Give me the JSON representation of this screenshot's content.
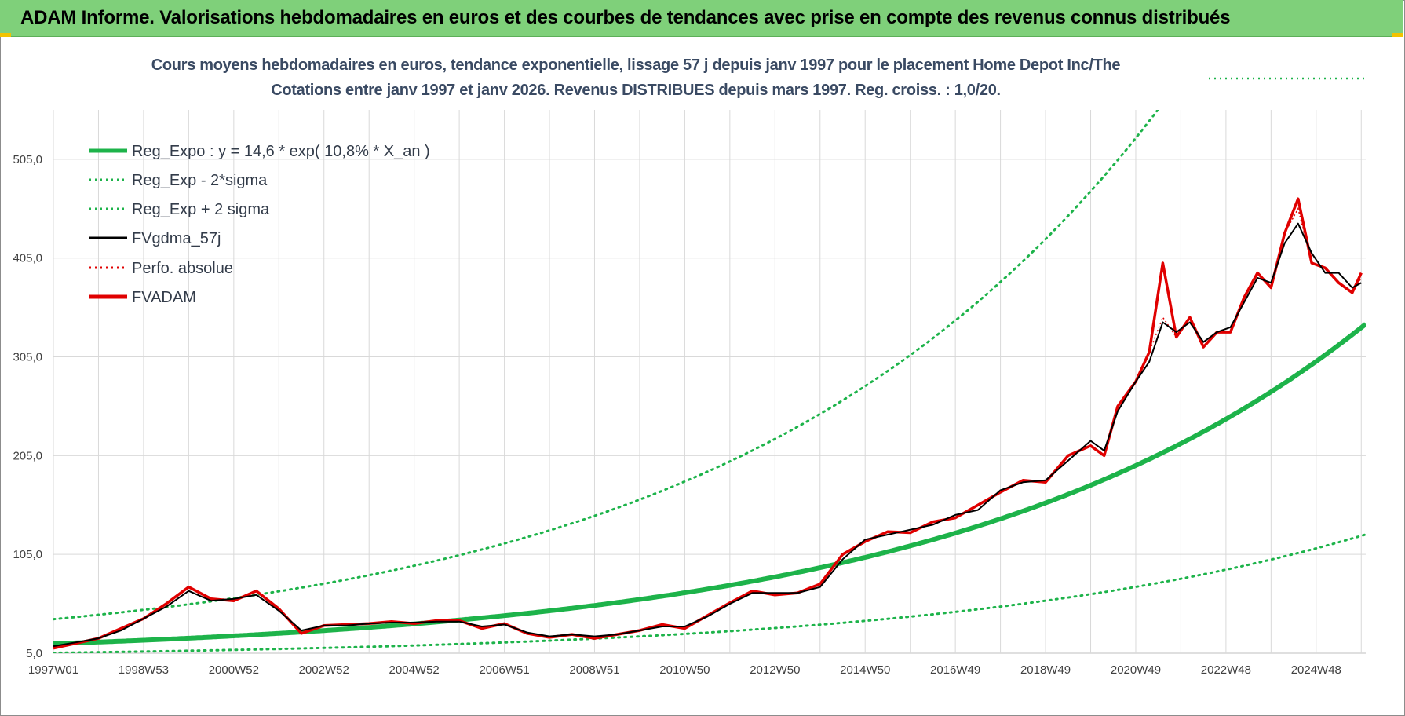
{
  "header": {
    "title": "ADAM Informe. Valorisations hebdomadaires en euros et des courbes de tendances avec prise en compte des revenus connus distribués"
  },
  "chart_data": {
    "type": "line",
    "title": "Cours moyens hebdomadaires en euros, tendance exponentielle, lissage 57 j depuis janv 1997 pour le placement Home Depot Inc/The",
    "subtitle": "Cotations entre janv 1997 et janv 2026. Revenus DISTRIBUES depuis mars 1997.  Reg. croiss. : 1,0/20.",
    "xlabel": "",
    "ylabel": "",
    "ylim": [
      5,
      555
    ],
    "xlim": [
      1997.0,
      2026.1
    ],
    "y_ticks": [
      "505,0",
      "405,0",
      "305,0",
      "205,0",
      "105,0",
      "5,0"
    ],
    "y_tick_values": [
      505,
      405,
      305,
      205,
      105,
      5
    ],
    "x_ticks": [
      "1997W01",
      "1998W53",
      "2000W52",
      "2002W52",
      "2004W52",
      "2006W51",
      "2008W51",
      "2010W50",
      "2012W50",
      "2014W50",
      "2016W49",
      "2018W49",
      "2020W49",
      "2022W48",
      "2024W48"
    ],
    "x_tick_values": [
      1997.0,
      1999.0,
      2001.0,
      2003.0,
      2005.0,
      2007.0,
      2009.0,
      2011.0,
      2013.0,
      2015.0,
      2017.0,
      2019.0,
      2021.0,
      2023.0,
      2025.0
    ],
    "grid": true,
    "legend_position": "top-left",
    "regression": {
      "a": 14.6,
      "rate": 0.108,
      "start_year": 1997.0,
      "sigma_low_factor": 0.37,
      "sigma_high_factor": 2.7
    },
    "series": [
      {
        "name": "Reg_Expo : y = 14,6 * exp( 10,8% *  X_an )",
        "color": "#1db34a",
        "style": "solid-thick"
      },
      {
        "name": "Reg_Exp - 2*sigma",
        "color": "#1db34a",
        "style": "dotted"
      },
      {
        "name": "Reg_Exp + 2 sigma",
        "color": "#1db34a",
        "style": "dotted"
      },
      {
        "name": "FVgdma_57j",
        "color": "#000000",
        "style": "solid",
        "x": [
          1997.0,
          1997.5,
          1998.0,
          1998.5,
          1999.0,
          1999.5,
          2000.0,
          2000.5,
          2001.0,
          2001.5,
          2002.0,
          2002.5,
          2003.0,
          2003.5,
          2004.0,
          2004.5,
          2005.0,
          2005.5,
          2006.0,
          2006.5,
          2007.0,
          2007.5,
          2008.0,
          2008.5,
          2009.0,
          2009.5,
          2010.0,
          2010.5,
          2011.0,
          2011.5,
          2012.0,
          2012.5,
          2013.0,
          2013.5,
          2014.0,
          2014.5,
          2015.0,
          2015.5,
          2016.0,
          2016.5,
          2017.0,
          2017.5,
          2018.0,
          2018.5,
          2019.0,
          2019.5,
          2020.0,
          2020.3,
          2020.6,
          2021.0,
          2021.3,
          2021.6,
          2021.9,
          2022.2,
          2022.5,
          2022.8,
          2023.1,
          2023.4,
          2023.7,
          2024.0,
          2024.3,
          2024.6,
          2024.9,
          2025.2,
          2025.5,
          2025.8,
          2026.0
        ],
        "values": [
          12,
          16,
          20,
          28,
          40,
          52,
          68,
          58,
          60,
          64,
          48,
          28,
          33,
          33,
          35,
          36,
          36,
          37,
          37,
          32,
          34,
          26,
          22,
          24,
          22,
          24,
          28,
          32,
          32,
          42,
          55,
          66,
          66,
          66,
          72,
          100,
          120,
          125,
          130,
          135,
          145,
          150,
          170,
          178,
          180,
          200,
          220,
          210,
          250,
          280,
          300,
          340,
          330,
          340,
          320,
          330,
          335,
          360,
          385,
          380,
          420,
          440,
          410,
          390,
          390,
          375,
          380
        ]
      },
      {
        "name": "Perfo. absolue",
        "color": "#e00000",
        "style": "dotted",
        "x": [
          1997.0,
          1997.5,
          1998.0,
          1998.5,
          1999.0,
          1999.5,
          2000.0,
          2000.5,
          2001.0,
          2001.5,
          2002.0,
          2002.5,
          2003.0,
          2003.5,
          2004.0,
          2004.5,
          2005.0,
          2005.5,
          2006.0,
          2006.5,
          2007.0,
          2007.5,
          2008.0,
          2008.5,
          2009.0,
          2009.5,
          2010.0,
          2010.5,
          2011.0,
          2011.5,
          2012.0,
          2012.5,
          2013.0,
          2013.5,
          2014.0,
          2014.5,
          2015.0,
          2015.5,
          2016.0,
          2016.5,
          2017.0,
          2017.5,
          2018.0,
          2018.5,
          2019.0,
          2019.5,
          2020.0,
          2020.3,
          2020.6,
          2021.0,
          2021.3,
          2021.6,
          2021.9,
          2022.2,
          2022.5,
          2022.8,
          2023.1,
          2023.4,
          2023.7,
          2024.0,
          2024.3,
          2024.6,
          2024.9,
          2025.2,
          2025.5,
          2025.8,
          2026.0
        ],
        "values": [
          10,
          15,
          20,
          30,
          40,
          55,
          72,
          60,
          58,
          68,
          50,
          25,
          33,
          34,
          35,
          37,
          35,
          38,
          38,
          30,
          35,
          25,
          21,
          24,
          20,
          24,
          28,
          34,
          30,
          43,
          56,
          68,
          64,
          66,
          75,
          105,
          118,
          128,
          127,
          138,
          142,
          155,
          168,
          180,
          178,
          205,
          215,
          205,
          255,
          280,
          310,
          345,
          325,
          345,
          315,
          330,
          330,
          365,
          390,
          375,
          430,
          455,
          400,
          395,
          380,
          370,
          385
        ]
      },
      {
        "name": "FVADAM",
        "color": "#e00000",
        "style": "solid-thick",
        "x": [
          1997.0,
          1997.5,
          1998.0,
          1998.5,
          1999.0,
          1999.5,
          2000.0,
          2000.5,
          2001.0,
          2001.5,
          2002.0,
          2002.5,
          2003.0,
          2003.5,
          2004.0,
          2004.5,
          2005.0,
          2005.5,
          2006.0,
          2006.5,
          2007.0,
          2007.5,
          2008.0,
          2008.5,
          2009.0,
          2009.5,
          2010.0,
          2010.5,
          2011.0,
          2011.5,
          2012.0,
          2012.5,
          2013.0,
          2013.5,
          2014.0,
          2014.5,
          2015.0,
          2015.5,
          2016.0,
          2016.5,
          2017.0,
          2017.5,
          2018.0,
          2018.5,
          2019.0,
          2019.5,
          2020.0,
          2020.3,
          2020.6,
          2021.0,
          2021.3,
          2021.6,
          2021.9,
          2022.2,
          2022.5,
          2022.8,
          2023.1,
          2023.4,
          2023.7,
          2024.0,
          2024.3,
          2024.6,
          2024.9,
          2025.2,
          2025.5,
          2025.8,
          2026.0
        ],
        "values": [
          10,
          15,
          20,
          30,
          40,
          55,
          72,
          60,
          58,
          68,
          50,
          25,
          33,
          34,
          35,
          37,
          35,
          38,
          38,
          30,
          35,
          25,
          21,
          24,
          20,
          24,
          28,
          34,
          30,
          43,
          56,
          68,
          64,
          66,
          75,
          105,
          118,
          128,
          127,
          138,
          142,
          155,
          168,
          180,
          178,
          205,
          215,
          205,
          255,
          280,
          310,
          400,
          325,
          345,
          315,
          330,
          330,
          365,
          390,
          375,
          430,
          465,
          400,
          395,
          380,
          370,
          390
        ]
      }
    ]
  },
  "colors": {
    "header_bg": "#7fd07a",
    "grid": "#d9d9d9",
    "title": "#3a4a63"
  }
}
